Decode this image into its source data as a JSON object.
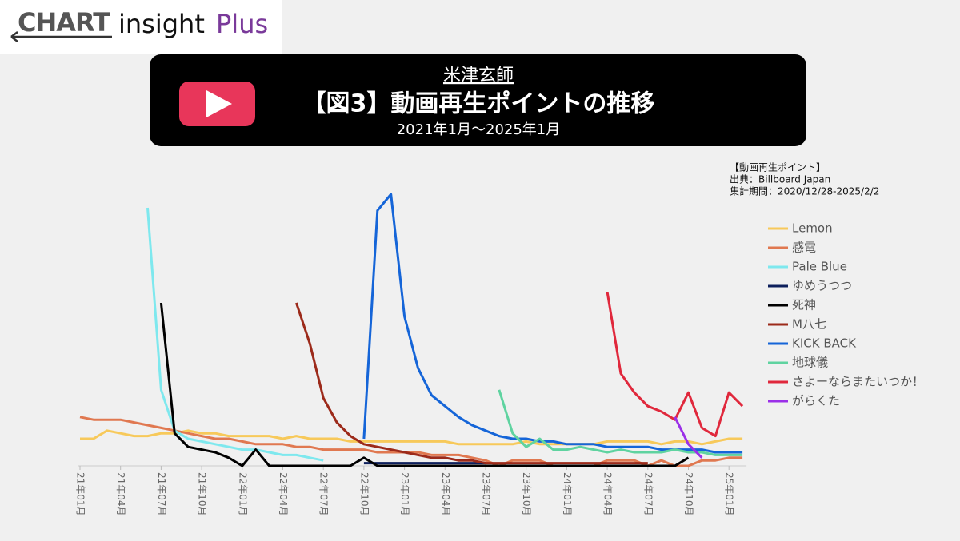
{
  "logo": {
    "brand": "CHART",
    "product": "insight",
    "edition": "Plus"
  },
  "chart_data": {
    "type": "line",
    "artist": "米津玄師",
    "title": "【図3】動画再生ポイントの推移",
    "subtitle": "2021年1月～2025年1月",
    "notes": [
      "【動画再生ポイント】",
      "出典：Billboard Japan",
      "集計期間：2020/12/28-2025/2/2"
    ],
    "categories": [
      "21年01月",
      null,
      null,
      "21年04月",
      null,
      null,
      "21年07月",
      null,
      null,
      "21年10月",
      null,
      null,
      "22年01月",
      null,
      null,
      "22年04月",
      null,
      null,
      "22年07月",
      null,
      null,
      "22年10月",
      null,
      null,
      "23年01月",
      null,
      null,
      "23年04月",
      null,
      null,
      "23年07月",
      null,
      null,
      "23年10月",
      null,
      null,
      "24年01月",
      null,
      null,
      "24年04月",
      null,
      null,
      "24年07月",
      null,
      null,
      "24年10月",
      null,
      null,
      "25年01月",
      null
    ],
    "ylim": [
      0,
      100
    ],
    "series": [
      {
        "name": "Lemon",
        "color": "#f7c95a",
        "values": [
          10,
          10,
          13,
          12,
          11,
          11,
          12,
          12,
          13,
          12,
          12,
          11,
          11,
          11,
          11,
          10,
          11,
          10,
          10,
          10,
          9,
          9,
          9,
          9,
          9,
          9,
          9,
          9,
          8,
          8,
          8,
          8,
          8,
          9,
          8,
          8,
          8,
          8,
          8,
          9,
          9,
          9,
          9,
          8,
          9,
          9,
          8,
          9,
          10,
          10
        ]
      },
      {
        "name": "感電",
        "color": "#e07850",
        "values": [
          18,
          17,
          17,
          17,
          16,
          15,
          14,
          13,
          12,
          11,
          10,
          10,
          9,
          8,
          8,
          8,
          7,
          7,
          6,
          6,
          6,
          6,
          5,
          5,
          5,
          5,
          4,
          4,
          4,
          3,
          2,
          0,
          2,
          2,
          2,
          0,
          0,
          0,
          0,
          2,
          2,
          2,
          0,
          2,
          0,
          0,
          2,
          2,
          3,
          3
        ]
      },
      {
        "name": "Pale Blue",
        "color": "#7ee8ee",
        "values": [
          null,
          null,
          null,
          null,
          null,
          95,
          28,
          13,
          10,
          9,
          8,
          7,
          6,
          6,
          5,
          4,
          4,
          3,
          2,
          null,
          null,
          null,
          null,
          null,
          null,
          null,
          null,
          null,
          null,
          null,
          null,
          null,
          null,
          null,
          null,
          null,
          null,
          null,
          null,
          null,
          null,
          null,
          null,
          null,
          null,
          null,
          null,
          null,
          null,
          null
        ]
      },
      {
        "name": "ゆめうつつ",
        "color": "#0d1f5c",
        "values": [
          null,
          null,
          null,
          null,
          null,
          null,
          null,
          null,
          null,
          null,
          null,
          null,
          null,
          null,
          null,
          null,
          null,
          null,
          null,
          null,
          null,
          1,
          1,
          1,
          1,
          1,
          1,
          1,
          1,
          1,
          1,
          null,
          null,
          null,
          null,
          null,
          null,
          null,
          null,
          null,
          null,
          null,
          null,
          null,
          null,
          null,
          null,
          null,
          null,
          null
        ]
      },
      {
        "name": "死神",
        "color": "#000000",
        "values": [
          null,
          null,
          null,
          null,
          null,
          null,
          60,
          12,
          7,
          6,
          5,
          3,
          0,
          6,
          0,
          0,
          0,
          0,
          0,
          0,
          0,
          3,
          0,
          0,
          0,
          0,
          0,
          0,
          0,
          0,
          0,
          0,
          0,
          0,
          0,
          0,
          0,
          0,
          0,
          0,
          0,
          0,
          0,
          0,
          0,
          3,
          null,
          null,
          null,
          null
        ]
      },
      {
        "name": "M八七",
        "color": "#9c2a1a",
        "values": [
          null,
          null,
          null,
          null,
          null,
          null,
          null,
          null,
          null,
          null,
          null,
          null,
          null,
          null,
          null,
          null,
          60,
          45,
          25,
          16,
          11,
          8,
          7,
          6,
          5,
          4,
          3,
          3,
          2,
          2,
          1,
          1,
          1,
          1,
          1,
          1,
          1,
          1,
          1,
          1,
          1,
          1,
          1,
          null,
          null,
          null,
          null,
          null,
          null,
          null
        ]
      },
      {
        "name": "KICK BACK",
        "color": "#1565d8",
        "values": [
          null,
          null,
          null,
          null,
          null,
          null,
          null,
          null,
          null,
          null,
          null,
          null,
          null,
          null,
          null,
          null,
          null,
          null,
          null,
          null,
          null,
          10,
          94,
          100,
          55,
          36,
          26,
          22,
          18,
          15,
          13,
          11,
          10,
          10,
          9,
          9,
          8,
          8,
          8,
          7,
          7,
          7,
          7,
          6,
          6,
          6,
          6,
          5,
          5,
          5
        ]
      },
      {
        "name": "地球儀",
        "color": "#5fd3a0",
        "values": [
          null,
          null,
          null,
          null,
          null,
          null,
          null,
          null,
          null,
          null,
          null,
          null,
          null,
          null,
          null,
          null,
          null,
          null,
          null,
          null,
          null,
          null,
          null,
          null,
          null,
          null,
          null,
          null,
          null,
          null,
          null,
          28,
          12,
          7,
          10,
          6,
          6,
          7,
          6,
          5,
          6,
          5,
          5,
          5,
          6,
          5,
          5,
          4,
          4,
          4
        ]
      },
      {
        "name": "さよーならまたいつか！",
        "color": "#e0283c",
        "values": [
          null,
          null,
          null,
          null,
          null,
          null,
          null,
          null,
          null,
          null,
          null,
          null,
          null,
          null,
          null,
          null,
          null,
          null,
          null,
          null,
          null,
          null,
          null,
          null,
          null,
          null,
          null,
          null,
          null,
          null,
          null,
          null,
          null,
          null,
          null,
          null,
          null,
          null,
          null,
          64,
          34,
          27,
          22,
          20,
          17,
          27,
          14,
          11,
          27,
          22
        ]
      },
      {
        "name": "がらくた",
        "color": "#9b30e8",
        "values": [
          null,
          null,
          null,
          null,
          null,
          null,
          null,
          null,
          null,
          null,
          null,
          null,
          null,
          null,
          null,
          null,
          null,
          null,
          null,
          null,
          null,
          null,
          null,
          null,
          null,
          null,
          null,
          null,
          null,
          null,
          null,
          null,
          null,
          null,
          null,
          null,
          null,
          null,
          null,
          null,
          null,
          null,
          null,
          null,
          18,
          8,
          3,
          null,
          null,
          null
        ]
      }
    ]
  }
}
